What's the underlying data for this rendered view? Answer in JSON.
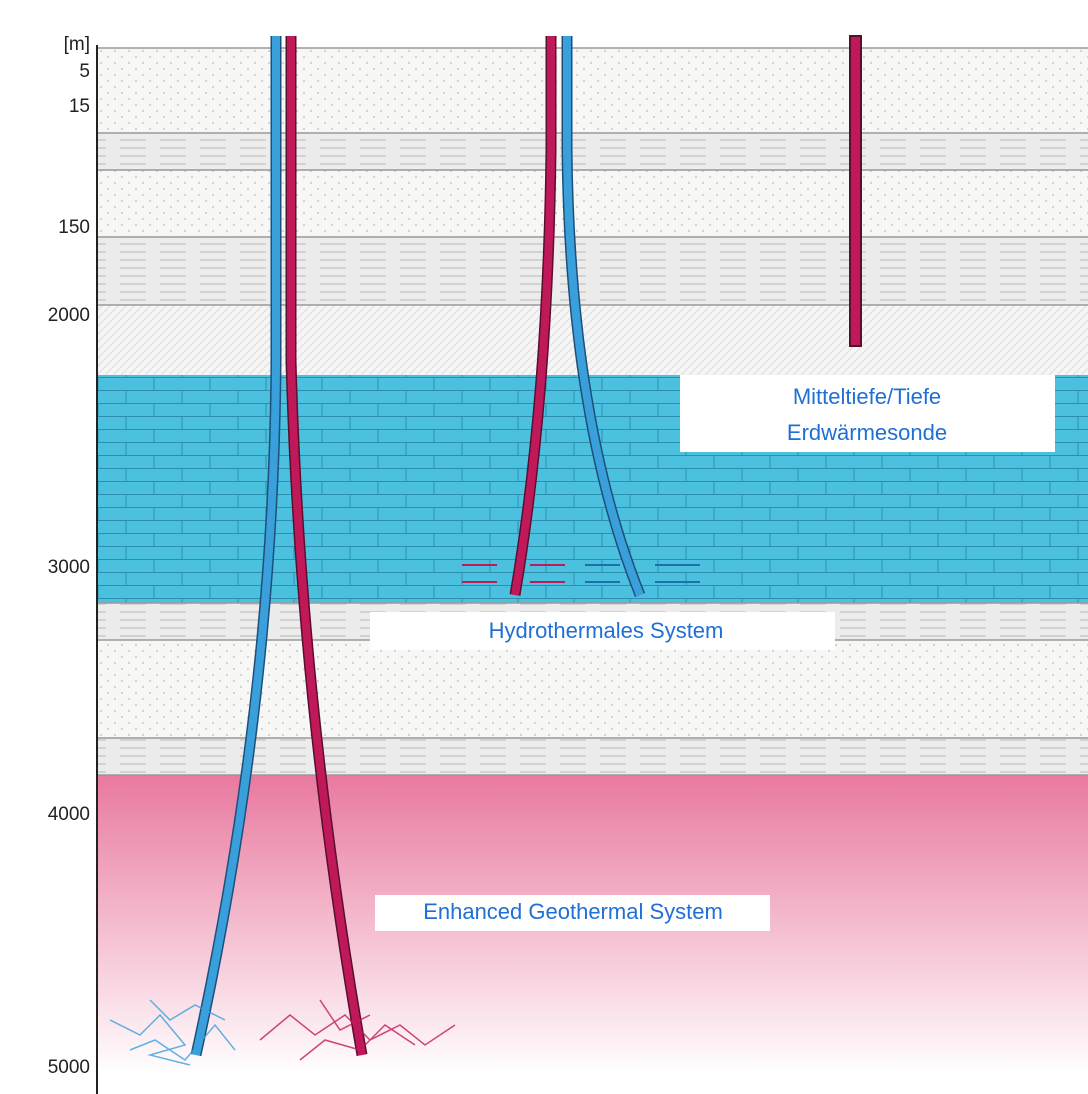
{
  "depth_axis": {
    "unit": "[m]",
    "labels": [
      "5",
      "15",
      "150",
      "2000",
      "3000",
      "4000",
      "5000"
    ]
  },
  "labels": {
    "deep_probe": [
      "Mitteltiefe/Tiefe",
      "Erdwärmesonde"
    ],
    "hydrothermal": "Hydrothermales System",
    "egs": "Enhanced Geothermal System"
  }
}
